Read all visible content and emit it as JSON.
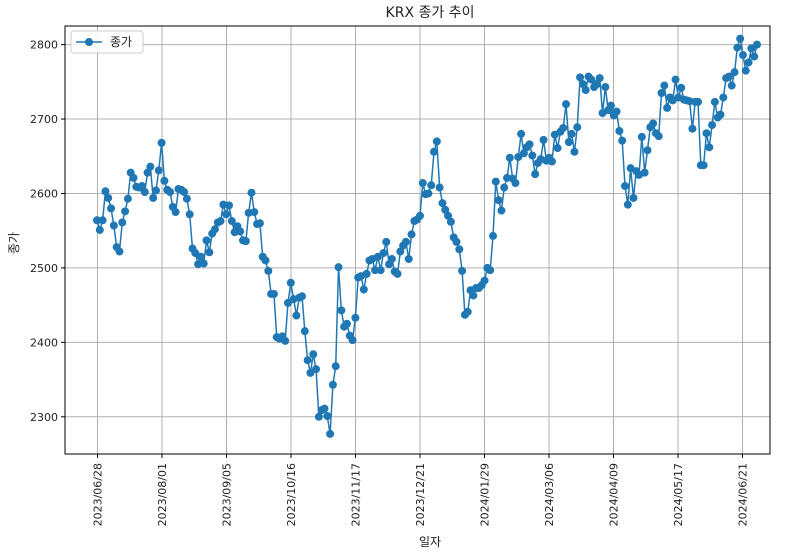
{
  "chart_data": {
    "type": "line",
    "title": "KRX 종가 추이",
    "xlabel": "일자",
    "ylabel": "종가",
    "ylim": [
      2250,
      2825
    ],
    "grid": true,
    "legend_position": "top-left",
    "x_ticks": [
      "2023/06/28",
      "2023/08/01",
      "2023/09/05",
      "2023/10/16",
      "2023/11/17",
      "2023/12/21",
      "2024/01/29",
      "2024/03/06",
      "2024/04/09",
      "2024/05/17",
      "2024/06/21"
    ],
    "y_ticks": [
      2300,
      2400,
      2500,
      2600,
      2700,
      2800
    ],
    "series": [
      {
        "name": "종가",
        "color": "#1f77b4",
        "marker": "circle",
        "values": [
          2564,
          2551,
          2564,
          2603,
          2594,
          2580,
          2557,
          2528,
          2522,
          2561,
          2576,
          2593,
          2628,
          2621,
          2609,
          2608,
          2610,
          2602,
          2628,
          2636,
          2594,
          2604,
          2631,
          2668,
          2617,
          2605,
          2602,
          2582,
          2575,
          2606,
          2605,
          2602,
          2593,
          2572,
          2526,
          2520,
          2505,
          2515,
          2506,
          2537,
          2521,
          2546,
          2552,
          2561,
          2563,
          2585,
          2572,
          2584,
          2563,
          2548,
          2556,
          2549,
          2537,
          2536,
          2574,
          2601,
          2575,
          2559,
          2560,
          2515,
          2510,
          2496,
          2465,
          2465,
          2407,
          2405,
          2408,
          2402,
          2453,
          2480,
          2458,
          2436,
          2460,
          2462,
          2415,
          2376,
          2359,
          2384,
          2364,
          2300,
          2309,
          2311,
          2301,
          2277,
          2343,
          2368,
          2501,
          2443,
          2421,
          2425,
          2409,
          2403,
          2433,
          2487,
          2489,
          2471,
          2492,
          2510,
          2512,
          2497,
          2515,
          2497,
          2520,
          2535,
          2505,
          2512,
          2495,
          2492,
          2522,
          2530,
          2535,
          2512,
          2545,
          2563,
          2565,
          2570,
          2614,
          2599,
          2600,
          2611,
          2656,
          2670,
          2608,
          2587,
          2578,
          2570,
          2562,
          2541,
          2535,
          2525,
          2496,
          2437,
          2441,
          2470,
          2463,
          2473,
          2473,
          2477,
          2483,
          2500,
          2497,
          2543,
          2616,
          2591,
          2577,
          2608,
          2621,
          2648,
          2620,
          2614,
          2649,
          2680,
          2654,
          2662,
          2666,
          2651,
          2626,
          2641,
          2646,
          2672,
          2644,
          2648,
          2643,
          2679,
          2661,
          2683,
          2688,
          2720,
          2669,
          2680,
          2656,
          2689,
          2756,
          2747,
          2739,
          2757,
          2753,
          2743,
          2747,
          2755,
          2708,
          2743,
          2712,
          2718,
          2705,
          2710,
          2684,
          2671,
          2610,
          2585,
          2634,
          2594,
          2630,
          2625,
          2676,
          2628,
          2658,
          2689,
          2694,
          2681,
          2677,
          2735,
          2745,
          2715,
          2729,
          2725,
          2753,
          2729,
          2742,
          2726,
          2725,
          2724,
          2687,
          2723,
          2723,
          2638,
          2638,
          2681,
          2662,
          2692,
          2723,
          2702,
          2706,
          2729,
          2755,
          2757,
          2745,
          2763,
          2796,
          2808,
          2786,
          2765,
          2776,
          2795,
          2784,
          2800
        ]
      }
    ]
  }
}
